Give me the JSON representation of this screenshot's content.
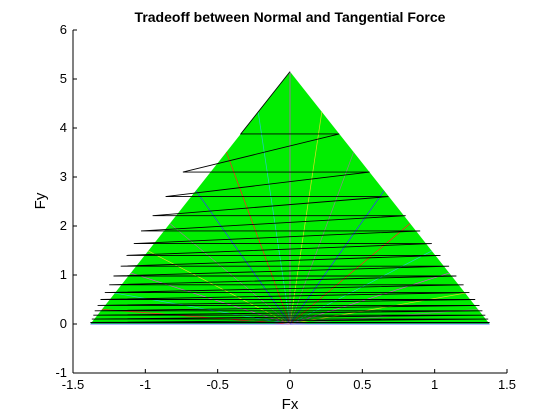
{
  "chart_data": {
    "type": "line",
    "title": "Tradeoff between Normal and Tangential Force",
    "xlabel": "Fx",
    "ylabel": "Fy",
    "xlim": [
      -1.5,
      1.5
    ],
    "ylim": [
      -1,
      6
    ],
    "xticks": [
      "-1.5",
      "-1",
      "-0.5",
      "0",
      "0.5",
      "1",
      "1.5"
    ],
    "yticks": [
      "-1",
      "0",
      "1",
      "2",
      "3",
      "4",
      "5",
      "6"
    ],
    "grid": false,
    "legend": "none",
    "region": {
      "fill_color": "#00ee00",
      "vertices": [
        [
          -1.38,
          0
        ],
        [
          1.38,
          0
        ],
        [
          0,
          5.15
        ]
      ]
    },
    "ray_colors": [
      "#3333ff",
      "#ff2222",
      "#22cccc",
      "#dd44dd",
      "#dddd22",
      "#888888"
    ],
    "fan_origin": [
      0,
      0
    ],
    "fan_endpoints": [
      [
        -1.38,
        0.0
      ],
      [
        -1.3,
        0.3
      ],
      [
        -1.21,
        0.63
      ],
      [
        -1.1,
        1.04
      ],
      [
        -0.98,
        1.49
      ],
      [
        -0.83,
        2.05
      ],
      [
        -0.65,
        2.72
      ],
      [
        -0.44,
        3.51
      ],
      [
        -0.22,
        4.33
      ],
      [
        0.0,
        5.15
      ],
      [
        0.22,
        4.33
      ],
      [
        0.44,
        3.51
      ],
      [
        0.65,
        2.72
      ],
      [
        0.83,
        2.05
      ],
      [
        0.98,
        1.49
      ],
      [
        1.1,
        1.04
      ],
      [
        1.21,
        0.63
      ],
      [
        1.3,
        0.3
      ],
      [
        1.38,
        0.0
      ]
    ],
    "zigzag_line": [
      [
        0.0,
        5.15
      ],
      [
        -0.34,
        3.88
      ],
      [
        0.34,
        3.88
      ],
      [
        -0.74,
        3.1
      ],
      [
        0.55,
        3.1
      ],
      [
        -0.86,
        2.6
      ],
      [
        0.68,
        2.6
      ],
      [
        -0.95,
        2.21
      ],
      [
        0.8,
        2.21
      ],
      [
        -1.03,
        1.9
      ],
      [
        0.9,
        1.9
      ],
      [
        -1.08,
        1.64
      ],
      [
        0.98,
        1.64
      ],
      [
        -1.13,
        1.4
      ],
      [
        1.04,
        1.4
      ],
      [
        -1.17,
        1.18
      ],
      [
        1.1,
        1.18
      ],
      [
        -1.22,
        0.98
      ],
      [
        1.15,
        0.98
      ],
      [
        -1.25,
        0.8
      ],
      [
        1.2,
        0.8
      ],
      [
        -1.28,
        0.64
      ],
      [
        1.24,
        0.64
      ],
      [
        -1.31,
        0.5
      ],
      [
        1.28,
        0.5
      ],
      [
        -1.33,
        0.38
      ],
      [
        1.31,
        0.38
      ],
      [
        -1.35,
        0.27
      ],
      [
        1.33,
        0.27
      ],
      [
        -1.36,
        0.18
      ],
      [
        1.35,
        0.18
      ],
      [
        -1.37,
        0.1
      ],
      [
        1.37,
        0.1
      ],
      [
        -1.38,
        0.03
      ],
      [
        1.38,
        0.03
      ]
    ]
  }
}
